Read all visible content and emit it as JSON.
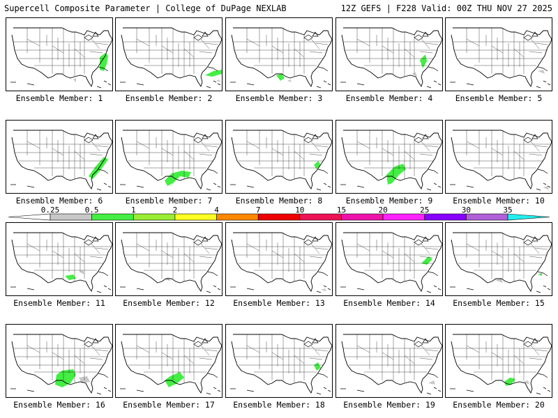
{
  "header": {
    "title_left": "Supercell Composite Parameter | College of DuPage NEXLAB",
    "title_right": "12Z GEFS | F228 Valid: 00Z THU NOV 27 2025"
  },
  "colorbar": {
    "bins": [
      {
        "label": "0.25",
        "color": "#c8c8c8"
      },
      {
        "label": "0.5",
        "color": "#44ee44"
      },
      {
        "label": "1",
        "color": "#99ee33"
      },
      {
        "label": "2",
        "color": "#ffff22"
      },
      {
        "label": "4",
        "color": "#ff8800"
      },
      {
        "label": "7",
        "color": "#ee0000"
      },
      {
        "label": "10",
        "color": "#ee1155"
      },
      {
        "label": "15",
        "color": "#ee11aa"
      },
      {
        "label": "20",
        "color": "#ff22ff"
      },
      {
        "label": "25",
        "color": "#8800ff"
      },
      {
        "label": "30",
        "color": "#b060d8"
      },
      {
        "label": "35",
        "color": "#22eeee"
      }
    ]
  },
  "panels": [
    {
      "caption": "Ensemble Member: 1"
    },
    {
      "caption": "Ensemble Member: 2"
    },
    {
      "caption": "Ensemble Member: 3"
    },
    {
      "caption": "Ensemble Member: 4"
    },
    {
      "caption": "Ensemble Member: 5"
    },
    {
      "caption": "Ensemble Member: 6"
    },
    {
      "caption": "Ensemble Member: 7"
    },
    {
      "caption": "Ensemble Member: 8"
    },
    {
      "caption": "Ensemble Member: 9"
    },
    {
      "caption": "Ensemble Member: 10"
    },
    {
      "caption": "Ensemble Member: 11"
    },
    {
      "caption": "Ensemble Member: 12"
    },
    {
      "caption": "Ensemble Member: 13"
    },
    {
      "caption": "Ensemble Member: 14"
    },
    {
      "caption": "Ensemble Member: 15"
    },
    {
      "caption": "Ensemble Member: 16"
    },
    {
      "caption": "Ensemble Member: 17"
    },
    {
      "caption": "Ensemble Member: 18"
    },
    {
      "caption": "Ensemble Member: 19"
    },
    {
      "caption": "Ensemble Member: 20"
    }
  ]
}
